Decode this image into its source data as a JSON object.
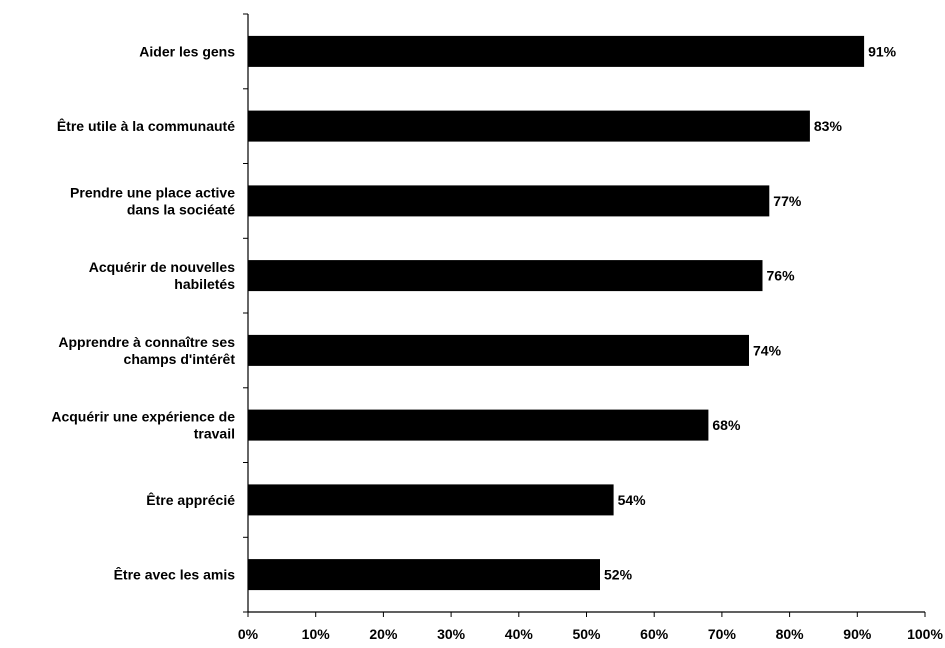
{
  "chart_data": {
    "type": "bar",
    "orientation": "horizontal",
    "title": "",
    "xlabel": "",
    "ylabel": "",
    "xlim": [
      0,
      100
    ],
    "x_ticks": [
      "0%",
      "10%",
      "20%",
      "30%",
      "40%",
      "50%",
      "60%",
      "70%",
      "80%",
      "90%",
      "100%"
    ],
    "grid": false,
    "legend": "none",
    "bar_color": "#000000",
    "categories": [
      [
        "Aider les gens"
      ],
      [
        "Être utile à la communauté"
      ],
      [
        "Prendre une place active",
        "dans la sociéaté"
      ],
      [
        "Acquérir de nouvelles",
        "habiletés"
      ],
      [
        "Apprendre à connaître ses",
        "champs d'intérêt"
      ],
      [
        "Acquérir une expérience de",
        "travail"
      ],
      [
        "Être apprécié"
      ],
      [
        "Être avec les amis"
      ]
    ],
    "values": [
      91,
      83,
      77,
      76,
      74,
      68,
      54,
      52
    ],
    "data_labels": [
      "91%",
      "83%",
      "77%",
      "76%",
      "74%",
      "68%",
      "54%",
      "52%"
    ]
  }
}
